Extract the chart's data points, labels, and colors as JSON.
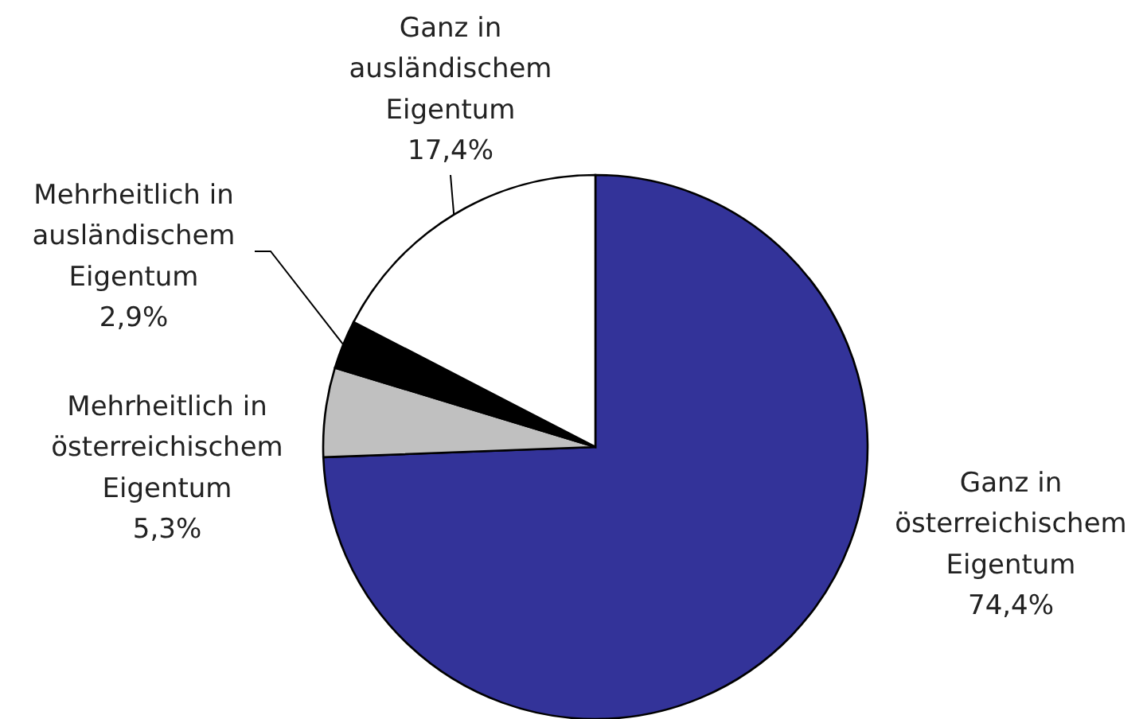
{
  "chart_data": {
    "type": "pie",
    "categories": [
      "Ganz in österreichischem Eigentum",
      "Mehrheitlich in österreichischem Eigentum",
      "Mehrheitlich in ausländischem Eigentum",
      "Ganz in ausländischem Eigentum"
    ],
    "values": [
      74.4,
      5.3,
      2.9,
      17.4
    ],
    "colors": [
      "#333399",
      "#c0c0c0",
      "#000000",
      "#ffffff"
    ],
    "value_labels": [
      "74,4%",
      "5,3%",
      "2,9%",
      "17,4%"
    ]
  }
}
